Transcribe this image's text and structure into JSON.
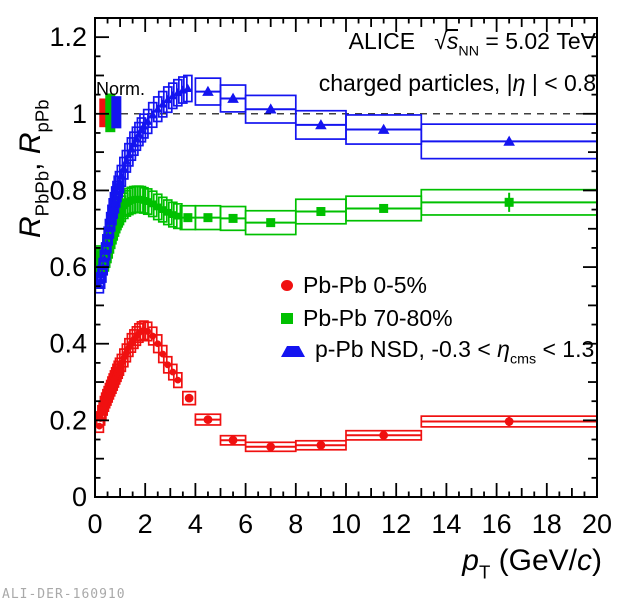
{
  "texts": {
    "norm_label": "Norm.",
    "watermark": "ALI-DER-160910",
    "annotation_line1_segments": [
      {
        "t": "ALICE   "
      },
      {
        "t": "√"
      },
      {
        "t": "s",
        "i": true,
        "ov": true
      },
      {
        "t": "NN",
        "sub": true
      },
      {
        "t": " = 5.02 TeV"
      }
    ],
    "annotation_line2_segments": [
      {
        "t": "charged particles, |"
      },
      {
        "t": "η",
        "i": true
      },
      {
        "t": " | < 0.8"
      }
    ],
    "ylabel_segments": [
      {
        "t": "R",
        "i": true
      },
      {
        "t": "PbPb",
        "sub": true
      },
      {
        "t": ", "
      },
      {
        "t": "R",
        "i": true
      },
      {
        "t": "pPb",
        "sub": true
      }
    ],
    "xlabel_segments": [
      {
        "t": "p",
        "i": true
      },
      {
        "t": "T",
        "sub": true
      },
      {
        "t": " (GeV/"
      },
      {
        "t": "c",
        "i": true
      },
      {
        "t": ")"
      }
    ]
  },
  "legend": {
    "entries": [
      {
        "marker": "circle",
        "color": "#f01010",
        "label": "Pb-Pb 0-5%",
        "label_segments": [
          {
            "t": "Pb-Pb 0-5%"
          }
        ]
      },
      {
        "marker": "square",
        "color": "#00c000",
        "label": "Pb-Pb 70-80%",
        "label_segments": [
          {
            "t": "Pb-Pb 70-80%"
          }
        ]
      },
      {
        "marker": "triangle",
        "color": "#1414f0",
        "label": "p-Pb NSD, -0.3 < η_cms < 1.3",
        "label_segments": [
          {
            "t": "p-Pb NSD, -0.3 < "
          },
          {
            "t": "η",
            "i": true
          },
          {
            "t": "cms",
            "sub": true
          },
          {
            "t": " < 1.3"
          }
        ]
      }
    ]
  },
  "chart_data": {
    "type": "scatter",
    "title": "ALICE sqrt(s_NN) = 5.02 TeV, charged particles, |eta| < 0.8",
    "xlabel": "pT (GeV/c)",
    "ylabel": "R_PbPb, R_pPb",
    "xlim": [
      0,
      20
    ],
    "ylim": [
      0,
      1.25
    ],
    "x_major_ticks": [
      0,
      2,
      4,
      6,
      8,
      10,
      12,
      14,
      16,
      18,
      20
    ],
    "x_tick_labels": [
      "0",
      "2",
      "4",
      "6",
      "8",
      "10",
      "12",
      "14",
      "16",
      "18",
      "20"
    ],
    "x_minor_step": 0.5,
    "y_major_ticks": [
      0,
      0.2,
      0.4,
      0.6,
      0.8,
      1.0,
      1.2
    ],
    "y_tick_labels": [
      "0",
      "0.2",
      "0.4",
      "0.6",
      "0.8",
      "1",
      "1.2"
    ],
    "y_minor_step": 0.05,
    "grid": false,
    "legend_position": "center-right",
    "reference_line_y": 1.0,
    "normalization_boxes": [
      {
        "color": "#f01010",
        "x1": 0.17,
        "x2": 0.65,
        "y1": 0.965,
        "y2": 1.04
      },
      {
        "color": "#00c000",
        "x1": 0.41,
        "x2": 0.81,
        "y1": 0.952,
        "y2": 1.053
      },
      {
        "color": "#1414f0",
        "x1": 0.65,
        "x2": 1.05,
        "y1": 0.962,
        "y2": 1.046
      }
    ],
    "series": [
      {
        "name": "Pb-Pb 0-5%",
        "marker": "circle",
        "color": "#f01010",
        "points": [
          [
            0.175,
            0.185,
            0.025,
            0.016
          ],
          [
            0.225,
            0.205,
            0.025,
            0.017
          ],
          [
            0.275,
            0.22,
            0.025,
            0.018
          ],
          [
            0.325,
            0.232,
            0.025,
            0.018
          ],
          [
            0.375,
            0.243,
            0.025,
            0.019
          ],
          [
            0.425,
            0.252,
            0.025,
            0.019
          ],
          [
            0.475,
            0.26,
            0.025,
            0.02
          ],
          [
            0.525,
            0.268,
            0.025,
            0.02
          ],
          [
            0.575,
            0.276,
            0.025,
            0.02
          ],
          [
            0.625,
            0.284,
            0.025,
            0.02
          ],
          [
            0.675,
            0.292,
            0.025,
            0.021
          ],
          [
            0.725,
            0.3,
            0.025,
            0.021
          ],
          [
            0.775,
            0.308,
            0.025,
            0.021
          ],
          [
            0.825,
            0.316,
            0.025,
            0.021
          ],
          [
            0.875,
            0.324,
            0.025,
            0.022
          ],
          [
            0.925,
            0.332,
            0.025,
            0.022
          ],
          [
            0.975,
            0.34,
            0.025,
            0.022
          ],
          [
            1.05,
            0.35,
            0.05,
            0.022
          ],
          [
            1.15,
            0.363,
            0.05,
            0.023
          ],
          [
            1.25,
            0.376,
            0.05,
            0.023
          ],
          [
            1.35,
            0.39,
            0.05,
            0.023
          ],
          [
            1.45,
            0.402,
            0.05,
            0.024
          ],
          [
            1.55,
            0.412,
            0.05,
            0.024
          ],
          [
            1.65,
            0.42,
            0.05,
            0.024
          ],
          [
            1.75,
            0.428,
            0.05,
            0.024
          ],
          [
            1.85,
            0.433,
            0.05,
            0.024
          ],
          [
            1.95,
            0.435,
            0.05,
            0.024
          ],
          [
            2.1,
            0.432,
            0.1,
            0.024
          ],
          [
            2.3,
            0.42,
            0.1,
            0.023
          ],
          [
            2.5,
            0.4,
            0.1,
            0.023
          ],
          [
            2.7,
            0.373,
            0.1,
            0.022
          ],
          [
            2.9,
            0.345,
            0.1,
            0.021
          ],
          [
            3.1,
            0.326,
            0.1,
            0.02
          ],
          [
            3.3,
            0.305,
            0.1,
            0.019
          ],
          [
            3.75,
            0.258,
            0.25,
            0.017
          ],
          [
            4.5,
            0.202,
            0.5,
            0.014
          ],
          [
            5.5,
            0.148,
            0.5,
            0.012
          ],
          [
            7.0,
            0.131,
            1.0,
            0.011
          ],
          [
            9.0,
            0.135,
            1.0,
            0.011
          ],
          [
            11.5,
            0.161,
            1.5,
            0.012
          ],
          [
            16.5,
            0.197,
            3.5,
            0.014,
            0.012
          ]
        ]
      },
      {
        "name": "Pb-Pb 70-80%",
        "marker": "square",
        "color": "#00c000",
        "points": [
          [
            0.175,
            0.625,
            0.025,
            0.03
          ],
          [
            0.225,
            0.617,
            0.025,
            0.03
          ],
          [
            0.275,
            0.612,
            0.025,
            0.03
          ],
          [
            0.325,
            0.614,
            0.025,
            0.03
          ],
          [
            0.375,
            0.62,
            0.025,
            0.03
          ],
          [
            0.425,
            0.63,
            0.025,
            0.03
          ],
          [
            0.475,
            0.642,
            0.025,
            0.03
          ],
          [
            0.525,
            0.655,
            0.025,
            0.031
          ],
          [
            0.575,
            0.668,
            0.025,
            0.031
          ],
          [
            0.625,
            0.68,
            0.025,
            0.031
          ],
          [
            0.675,
            0.692,
            0.025,
            0.031
          ],
          [
            0.725,
            0.703,
            0.025,
            0.032
          ],
          [
            0.775,
            0.713,
            0.025,
            0.032
          ],
          [
            0.825,
            0.722,
            0.025,
            0.032
          ],
          [
            0.875,
            0.73,
            0.025,
            0.032
          ],
          [
            0.925,
            0.738,
            0.025,
            0.033
          ],
          [
            0.975,
            0.744,
            0.025,
            0.033
          ],
          [
            1.05,
            0.752,
            0.05,
            0.033
          ],
          [
            1.15,
            0.76,
            0.05,
            0.033
          ],
          [
            1.25,
            0.766,
            0.05,
            0.033
          ],
          [
            1.35,
            0.771,
            0.05,
            0.034
          ],
          [
            1.45,
            0.774,
            0.05,
            0.034
          ],
          [
            1.55,
            0.776,
            0.05,
            0.034
          ],
          [
            1.65,
            0.777,
            0.05,
            0.034
          ],
          [
            1.75,
            0.777,
            0.05,
            0.034
          ],
          [
            1.85,
            0.776,
            0.05,
            0.034
          ],
          [
            1.95,
            0.774,
            0.05,
            0.033
          ],
          [
            2.1,
            0.771,
            0.1,
            0.033
          ],
          [
            2.3,
            0.765,
            0.1,
            0.033
          ],
          [
            2.5,
            0.757,
            0.1,
            0.033
          ],
          [
            2.7,
            0.75,
            0.1,
            0.032
          ],
          [
            2.9,
            0.743,
            0.1,
            0.032
          ],
          [
            3.1,
            0.737,
            0.1,
            0.032
          ],
          [
            3.3,
            0.733,
            0.1,
            0.032
          ],
          [
            3.7,
            0.729,
            0.3,
            0.031
          ],
          [
            4.5,
            0.729,
            0.5,
            0.031
          ],
          [
            5.5,
            0.727,
            0.5,
            0.031
          ],
          [
            7.0,
            0.716,
            1.0,
            0.031
          ],
          [
            9.0,
            0.745,
            1.0,
            0.032
          ],
          [
            11.5,
            0.753,
            1.5,
            0.032
          ],
          [
            16.5,
            0.769,
            3.5,
            0.033,
            0.025
          ]
        ]
      },
      {
        "name": "p-Pb NSD, -0.3 < eta_cms < 1.3",
        "marker": "triangle",
        "color": "#1414f0",
        "points": [
          [
            0.175,
            0.553,
            0.025,
            0.02
          ],
          [
            0.225,
            0.565,
            0.025,
            0.02
          ],
          [
            0.275,
            0.582,
            0.025,
            0.021
          ],
          [
            0.325,
            0.601,
            0.025,
            0.021
          ],
          [
            0.375,
            0.621,
            0.025,
            0.022
          ],
          [
            0.425,
            0.641,
            0.025,
            0.022
          ],
          [
            0.475,
            0.661,
            0.025,
            0.023
          ],
          [
            0.525,
            0.681,
            0.025,
            0.023
          ],
          [
            0.575,
            0.7,
            0.025,
            0.024
          ],
          [
            0.625,
            0.718,
            0.025,
            0.024
          ],
          [
            0.675,
            0.736,
            0.025,
            0.025
          ],
          [
            0.725,
            0.753,
            0.025,
            0.025
          ],
          [
            0.775,
            0.768,
            0.025,
            0.026
          ],
          [
            0.825,
            0.783,
            0.025,
            0.026
          ],
          [
            0.875,
            0.797,
            0.025,
            0.026
          ],
          [
            0.925,
            0.81,
            0.025,
            0.027
          ],
          [
            0.975,
            0.822,
            0.025,
            0.027
          ],
          [
            1.05,
            0.838,
            0.05,
            0.027
          ],
          [
            1.15,
            0.858,
            0.05,
            0.028
          ],
          [
            1.25,
            0.876,
            0.05,
            0.028
          ],
          [
            1.35,
            0.893,
            0.05,
            0.029
          ],
          [
            1.45,
            0.908,
            0.05,
            0.029
          ],
          [
            1.55,
            0.922,
            0.05,
            0.03
          ],
          [
            1.65,
            0.935,
            0.05,
            0.03
          ],
          [
            1.75,
            0.947,
            0.05,
            0.03
          ],
          [
            1.85,
            0.958,
            0.05,
            0.031
          ],
          [
            1.95,
            0.968,
            0.05,
            0.031
          ],
          [
            2.1,
            0.98,
            0.1,
            0.031
          ],
          [
            2.3,
            0.997,
            0.1,
            0.032
          ],
          [
            2.5,
            1.012,
            0.1,
            0.032
          ],
          [
            2.7,
            1.025,
            0.1,
            0.033
          ],
          [
            2.9,
            1.037,
            0.1,
            0.033
          ],
          [
            3.1,
            1.047,
            0.1,
            0.033
          ],
          [
            3.3,
            1.055,
            0.1,
            0.034
          ],
          [
            3.5,
            1.062,
            0.1,
            0.034
          ],
          [
            3.7,
            1.066,
            0.1,
            0.034
          ],
          [
            4.5,
            1.058,
            0.5,
            0.035
          ],
          [
            5.5,
            1.04,
            0.5,
            0.035
          ],
          [
            7.0,
            1.012,
            1.0,
            0.036
          ],
          [
            9.0,
            0.971,
            1.0,
            0.037
          ],
          [
            11.5,
            0.959,
            1.5,
            0.038
          ],
          [
            16.5,
            0.928,
            3.5,
            0.045
          ]
        ]
      }
    ]
  }
}
